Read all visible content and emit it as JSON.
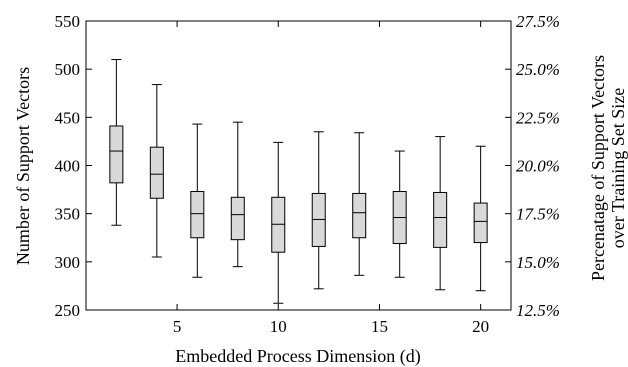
{
  "chart_data": {
    "type": "boxplot",
    "xlabel": "Embedded Process Dimension (d)",
    "ylabel": "Number of Support Vectors",
    "ylabel_right_line1": "Percenatage of Support Vectors",
    "ylabel_right_line2": "over Training Set Size",
    "xlim": [
      0.5,
      21.5
    ],
    "ylim": [
      250,
      550
    ],
    "x_ticks": [
      5,
      10,
      15,
      20
    ],
    "x_tick_labels": [
      "5",
      "10",
      "15",
      "20"
    ],
    "y_ticks": [
      250,
      300,
      350,
      400,
      450,
      500,
      550
    ],
    "y_tick_labels": [
      "250",
      "300",
      "350",
      "400",
      "450",
      "500",
      "550"
    ],
    "y2_ticks": [
      250,
      300,
      350,
      400,
      450,
      500,
      550
    ],
    "y2_tick_labels": [
      "12.5%",
      "15.0%",
      "17.5%",
      "20.0%",
      "22.5%",
      "25.0%",
      "27.5%"
    ],
    "boxes": [
      {
        "x": 2,
        "min": 338,
        "q1": 382,
        "median": 415,
        "q3": 441,
        "max": 510
      },
      {
        "x": 4,
        "min": 305,
        "q1": 366,
        "median": 391,
        "q3": 419,
        "max": 484
      },
      {
        "x": 6,
        "min": 284,
        "q1": 325,
        "median": 350,
        "q3": 373,
        "max": 443
      },
      {
        "x": 8,
        "min": 295,
        "q1": 323,
        "median": 349,
        "q3": 367,
        "max": 445
      },
      {
        "x": 10,
        "min": 257,
        "q1": 310,
        "median": 339,
        "q3": 367,
        "max": 424
      },
      {
        "x": 12,
        "min": 272,
        "q1": 316,
        "median": 344,
        "q3": 371,
        "max": 435
      },
      {
        "x": 14,
        "min": 286,
        "q1": 325,
        "median": 351,
        "q3": 371,
        "max": 434
      },
      {
        "x": 16,
        "min": 284,
        "q1": 319,
        "median": 346,
        "q3": 373,
        "max": 415
      },
      {
        "x": 18,
        "min": 271,
        "q1": 315,
        "median": 346,
        "q3": 372,
        "max": 430
      },
      {
        "x": 20,
        "min": 270,
        "q1": 320,
        "median": 342,
        "q3": 361,
        "max": 420
      }
    ],
    "box_fill": "#d9d9d9",
    "grid": false
  }
}
